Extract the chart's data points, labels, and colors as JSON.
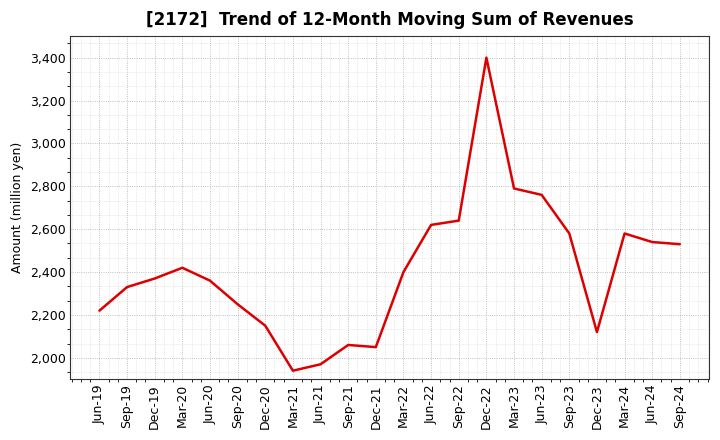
{
  "title": "[2172]  Trend of 12-Month Moving Sum of Revenues",
  "ylabel": "Amount (million yen)",
  "line_color": "#dd0000",
  "bg_color": "#ffffff",
  "plot_bg_color": "#ffffff",
  "grid_color": "#999999",
  "ylim": [
    1900,
    3500
  ],
  "yticks": [
    2000,
    2200,
    2400,
    2600,
    2800,
    3000,
    3200,
    3400
  ],
  "x_labels": [
    "Jun-19",
    "Sep-19",
    "Dec-19",
    "Mar-20",
    "Jun-20",
    "Sep-20",
    "Dec-20",
    "Mar-21",
    "Jun-21",
    "Sep-21",
    "Dec-21",
    "Mar-22",
    "Jun-22",
    "Sep-22",
    "Dec-22",
    "Mar-23",
    "Jun-23",
    "Sep-23",
    "Dec-23",
    "Mar-24",
    "Jun-24",
    "Sep-24"
  ],
  "values": [
    2220,
    2330,
    2370,
    2420,
    2360,
    2250,
    2150,
    1940,
    1970,
    2060,
    2050,
    2400,
    2620,
    2640,
    3400,
    2790,
    2760,
    2580,
    2120,
    2580,
    2540,
    2530
  ],
  "title_fontsize": 12,
  "ylabel_fontsize": 9,
  "tick_fontsize": 9,
  "line_width": 1.8
}
